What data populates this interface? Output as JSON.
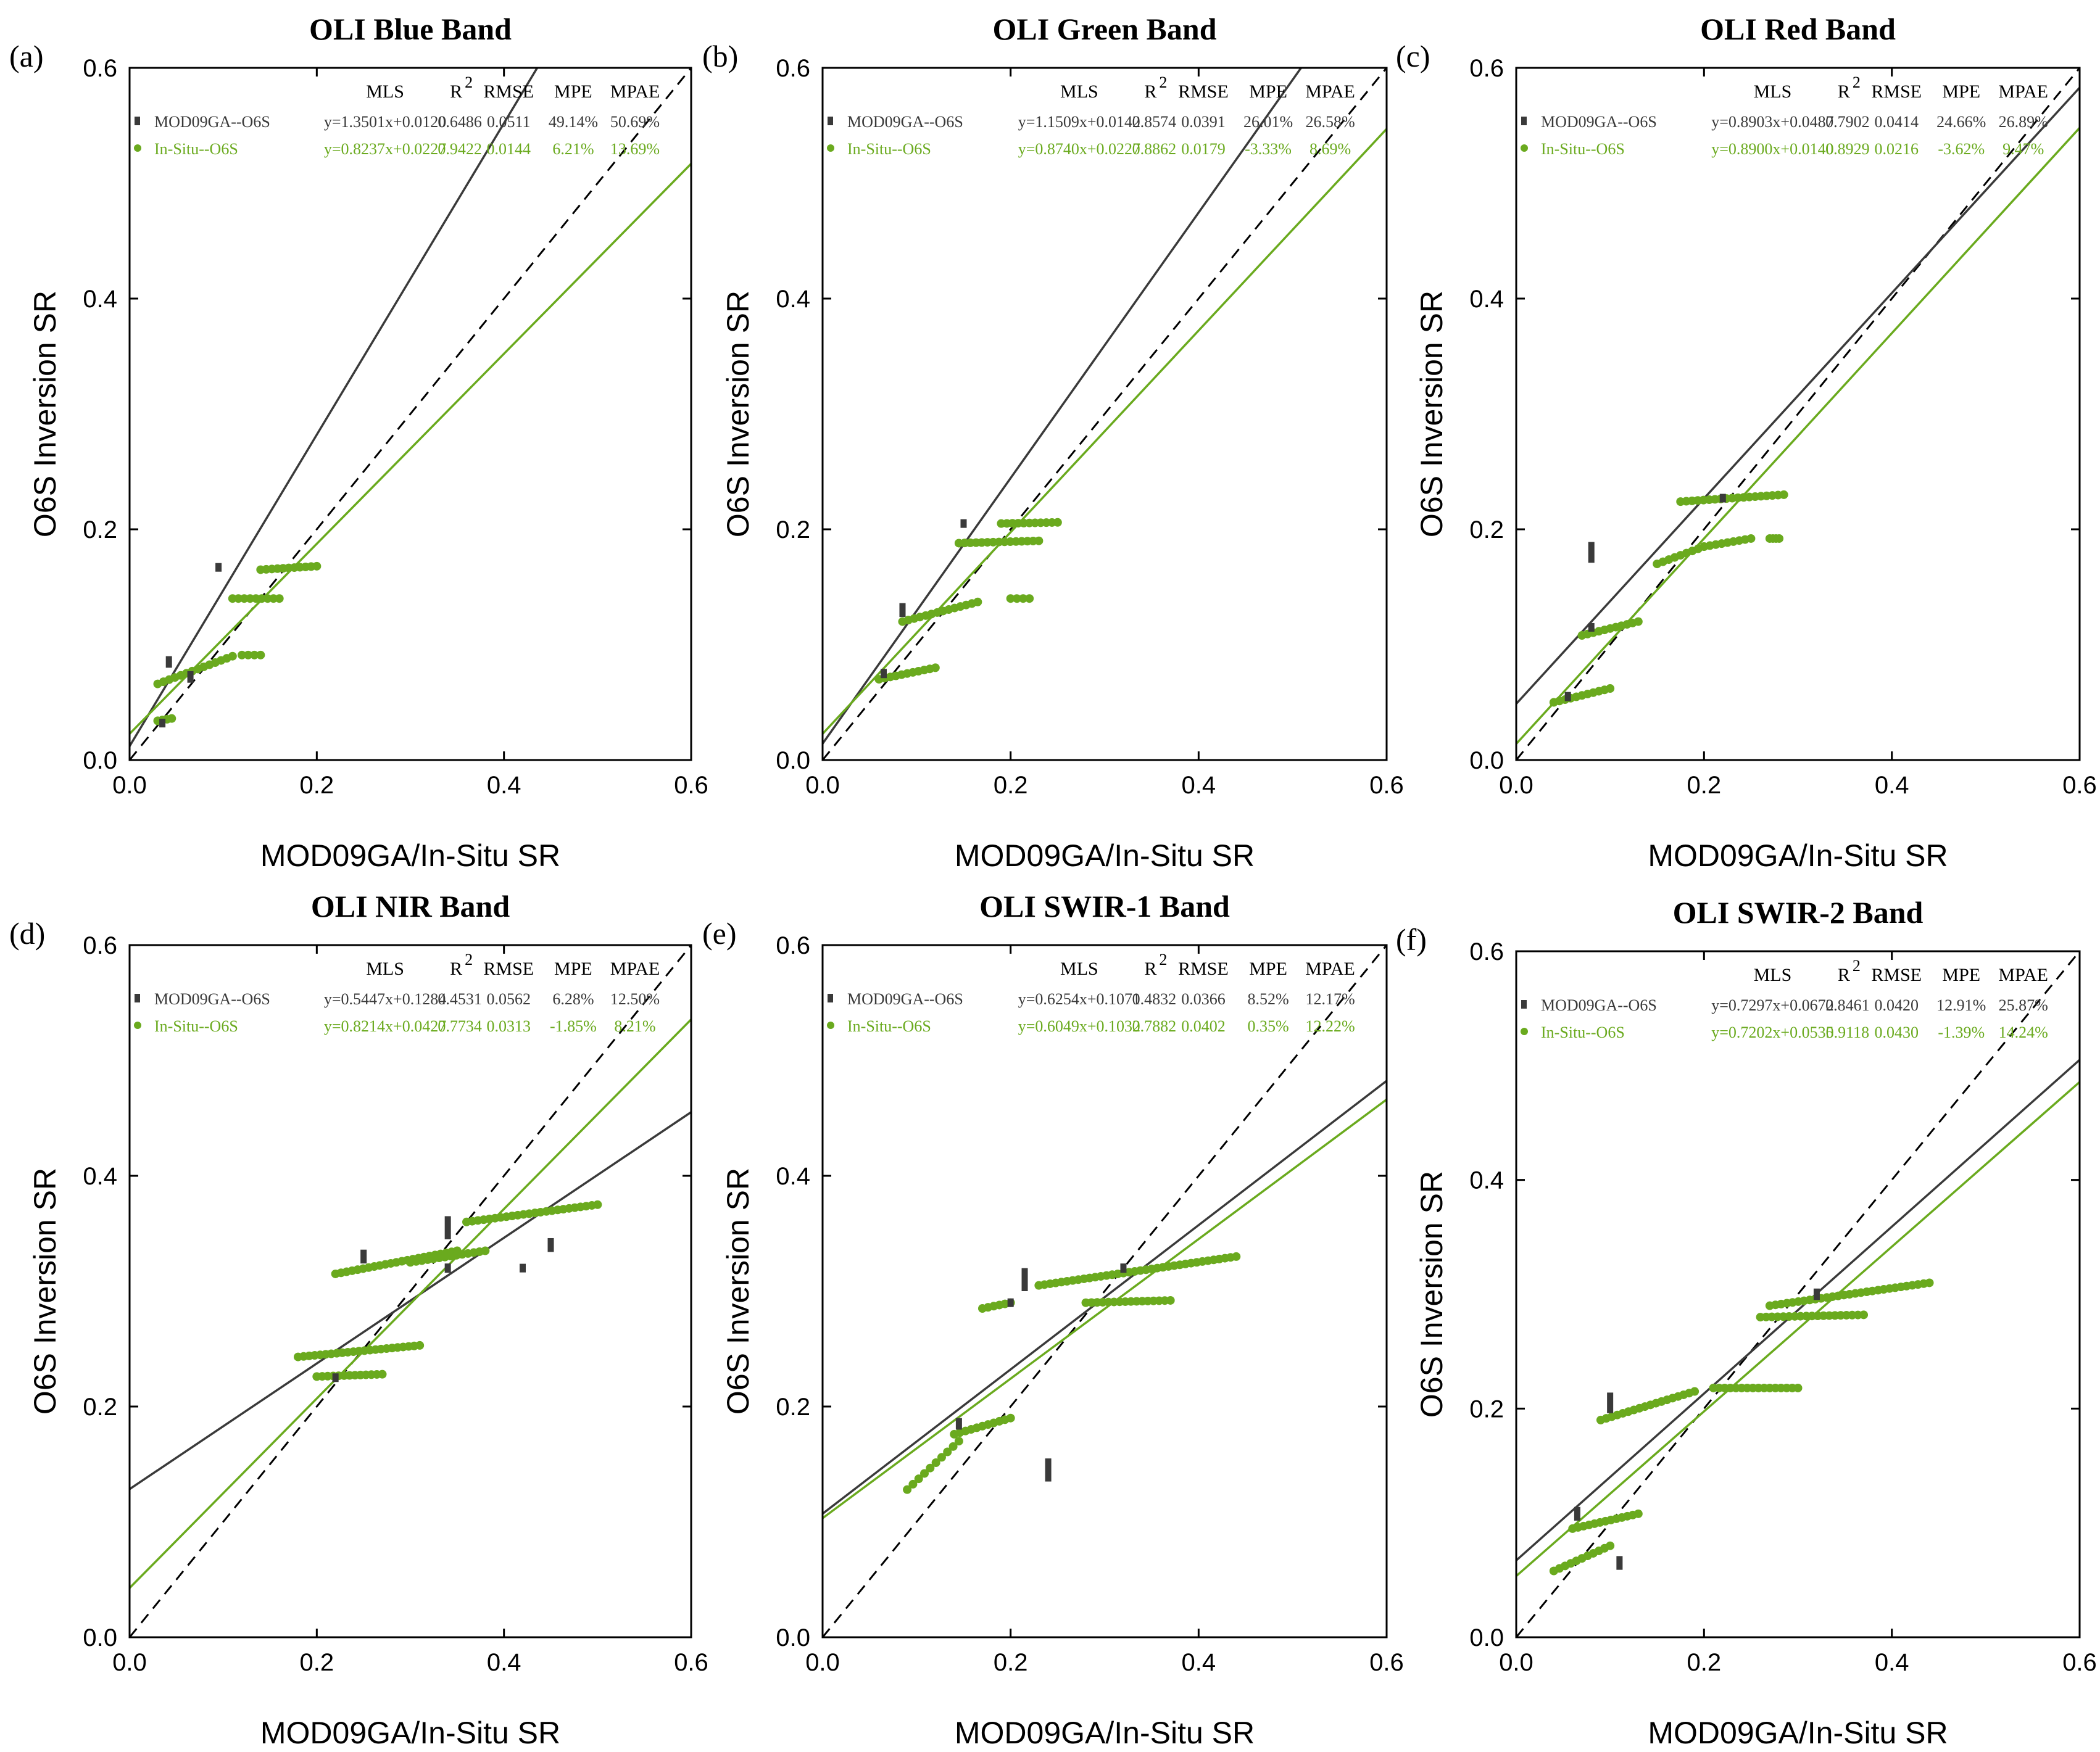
{
  "figure": {
    "colors": {
      "mod": "#3a3a3a",
      "situ": "#6aaa1e",
      "axis": "#000000"
    },
    "legend_header": {
      "mls": "MLS",
      "r2": "R",
      "r2_sup": "2",
      "rmse": "RMSE",
      "mpe": "MPE",
      "mpae": "MPAE"
    }
  },
  "chart_data": [
    {
      "type": "scatter",
      "panel_label": "(a)",
      "title": "OLI Blue Band",
      "xlabel": "MOD09GA/In-Situ SR",
      "ylabel": "O6S Inversion SR",
      "xlim": [
        0,
        0.6
      ],
      "ylim": [
        0,
        0.6
      ],
      "xticks": [
        "0.0",
        "0.2",
        "0.4",
        "0.6"
      ],
      "yticks": [
        "0.0",
        "0.2",
        "0.4",
        "0.6"
      ],
      "reference_line": "1:1 dashed",
      "series": [
        {
          "name": "MOD09GA--O6S",
          "equation": "y=1.3501x+0.0120",
          "slope": 1.3501,
          "intercept": 0.012,
          "r2": "0.6486",
          "rmse": "0.0511",
          "mpe": "49.14%",
          "mpae": "50.69%",
          "clusters": [
            [
              0.042,
              0.085,
              0.01
            ],
            [
              0.065,
              0.072,
              0.01
            ],
            [
              0.035,
              0.032,
              0.005
            ],
            [
              0.095,
              0.167,
              0.004
            ]
          ]
        },
        {
          "name": "In-Situ--O6S",
          "equation": "y=0.8237x+0.0227",
          "slope": 0.8237,
          "intercept": 0.0227,
          "r2": "0.9422",
          "rmse": "0.0144",
          "mpe": "6.21%",
          "mpae": "13.69%",
          "segments": [
            [
              0.03,
              0.11,
              0.066,
              0.09
            ],
            [
              0.14,
              0.2,
              0.165,
              0.168
            ],
            [
              0.11,
              0.16,
              0.14,
              0.14
            ],
            [
              0.03,
              0.045,
              0.034,
              0.036
            ],
            [
              0.12,
              0.14,
              0.091,
              0.091
            ]
          ]
        }
      ]
    },
    {
      "type": "scatter",
      "panel_label": "(b)",
      "title": "OLI Green Band",
      "xlabel": "MOD09GA/In-Situ SR",
      "ylabel": "O6S Inversion SR",
      "xlim": [
        0,
        0.6
      ],
      "ylim": [
        0,
        0.6
      ],
      "xticks": [
        "0.0",
        "0.2",
        "0.4",
        "0.6"
      ],
      "yticks": [
        "0.0",
        "0.2",
        "0.4",
        "0.6"
      ],
      "reference_line": "1:1 dashed",
      "series": [
        {
          "name": "MOD09GA--O6S",
          "equation": "y=1.1509x+0.0142",
          "slope": 1.1509,
          "intercept": 0.0142,
          "r2": "0.8574",
          "rmse": "0.0391",
          "mpe": "26.01%",
          "mpae": "26.58%",
          "clusters": [
            [
              0.085,
              0.13,
              0.012
            ],
            [
              0.065,
              0.075,
              0.008
            ],
            [
              0.15,
              0.205,
              0.004
            ]
          ]
        },
        {
          "name": "In-Situ--O6S",
          "equation": "y=0.8740x+0.0227",
          "slope": 0.874,
          "intercept": 0.0227,
          "r2": "0.8862",
          "rmse": "0.0179",
          "mpe": "-3.33%",
          "mpae": "8.69%",
          "segments": [
            [
              0.085,
              0.165,
              0.12,
              0.137
            ],
            [
              0.145,
              0.23,
              0.188,
              0.19
            ],
            [
              0.19,
              0.25,
              0.205,
              0.206
            ],
            [
              0.06,
              0.12,
              0.07,
              0.08
            ],
            [
              0.2,
              0.22,
              0.14,
              0.14
            ]
          ]
        }
      ]
    },
    {
      "type": "scatter",
      "panel_label": "(c)",
      "title": "OLI Red Band",
      "xlabel": "MOD09GA/In-Situ SR",
      "ylabel": "O6S Inversion SR",
      "xlim": [
        0,
        0.6
      ],
      "ylim": [
        0,
        0.6
      ],
      "xticks": [
        "0.0",
        "0.2",
        "0.4",
        "0.6"
      ],
      "yticks": [
        "0.0",
        "0.2",
        "0.4",
        "0.6"
      ],
      "reference_line": "1:1 dashed",
      "series": [
        {
          "name": "MOD09GA--O6S",
          "equation": "y=0.8903x+0.0487",
          "slope": 0.8903,
          "intercept": 0.0487,
          "r2": "0.7902",
          "rmse": "0.0414",
          "mpe": "24.66%",
          "mpae": "26.89%",
          "clusters": [
            [
              0.08,
              0.18,
              0.018
            ],
            [
              0.08,
              0.115,
              0.006
            ],
            [
              0.055,
              0.055,
              0.008
            ],
            [
              0.22,
              0.227,
              0.004
            ]
          ]
        },
        {
          "name": "In-Situ--O6S",
          "equation": "y=0.8900x+0.0140",
          "slope": 0.89,
          "intercept": 0.014,
          "r2": "0.8929",
          "rmse": "0.0216",
          "mpe": "-3.62%",
          "mpae": "9.47%",
          "segments": [
            [
              0.07,
              0.13,
              0.108,
              0.12
            ],
            [
              0.175,
              0.285,
              0.224,
              0.23
            ],
            [
              0.15,
              0.2,
              0.17,
              0.185
            ],
            [
              0.2,
              0.25,
              0.185,
              0.192
            ],
            [
              0.04,
              0.1,
              0.05,
              0.062
            ],
            [
              0.27,
              0.28,
              0.192,
              0.192
            ]
          ]
        }
      ]
    },
    {
      "type": "scatter",
      "panel_label": "(d)",
      "title": "OLI NIR Band",
      "xlabel": "MOD09GA/In-Situ SR",
      "ylabel": "O6S Inversion SR",
      "xlim": [
        0,
        0.6
      ],
      "ylim": [
        0,
        0.6
      ],
      "xticks": [
        "0.0",
        "0.2",
        "0.4",
        "0.6"
      ],
      "yticks": [
        "0.0",
        "0.2",
        "0.4",
        "0.6"
      ],
      "reference_line": "1:1 dashed",
      "series": [
        {
          "name": "MOD09GA--O6S",
          "equation": "y=0.5447x+0.1284",
          "slope": 0.5447,
          "intercept": 0.1284,
          "r2": "0.4531",
          "rmse": "0.0562",
          "mpe": "6.28%",
          "mpae": "12.50%",
          "clusters": [
            [
              0.25,
              0.33,
              0.012
            ],
            [
              0.34,
              0.355,
              0.02
            ],
            [
              0.34,
              0.32,
              0.008
            ],
            [
              0.42,
              0.32,
              0.006
            ],
            [
              0.45,
              0.34,
              0.012
            ],
            [
              0.22,
              0.225,
              0.004
            ]
          ]
        },
        {
          "name": "In-Situ--O6S",
          "equation": "y=0.8214x+0.0427",
          "slope": 0.8214,
          "intercept": 0.0427,
          "r2": "0.7734",
          "rmse": "0.0313",
          "mpe": "-1.85%",
          "mpae": "8.21%",
          "segments": [
            [
              0.22,
              0.35,
              0.315,
              0.335
            ],
            [
              0.36,
              0.5,
              0.36,
              0.375
            ],
            [
              0.3,
              0.38,
              0.325,
              0.335
            ],
            [
              0.18,
              0.31,
              0.243,
              0.253
            ],
            [
              0.2,
              0.27,
              0.226,
              0.228
            ]
          ]
        }
      ]
    },
    {
      "type": "scatter",
      "panel_label": "(e)",
      "title": "OLI SWIR-1 Band",
      "xlabel": "MOD09GA/In-Situ SR",
      "ylabel": "O6S Inversion SR",
      "xlim": [
        0,
        0.6
      ],
      "ylim": [
        0,
        0.6
      ],
      "xticks": [
        "0.0",
        "0.2",
        "0.4",
        "0.6"
      ],
      "yticks": [
        "0.0",
        "0.2",
        "0.4",
        "0.6"
      ],
      "reference_line": "1:1 dashed",
      "series": [
        {
          "name": "MOD09GA--O6S",
          "equation": "y=0.6254x+0.1071",
          "slope": 0.6254,
          "intercept": 0.1071,
          "r2": "0.4832",
          "rmse": "0.0366",
          "mpe": "8.52%",
          "mpae": "12.17%",
          "clusters": [
            [
              0.215,
              0.31,
              0.02
            ],
            [
              0.2,
              0.29,
              0.006
            ],
            [
              0.145,
              0.185,
              0.01
            ],
            [
              0.24,
              0.145,
              0.02
            ],
            [
              0.32,
              0.32,
              0.008
            ]
          ]
        },
        {
          "name": "In-Situ--O6S",
          "equation": "y=0.6049x+0.1032",
          "slope": 0.6049,
          "intercept": 0.1032,
          "r2": "0.7882",
          "rmse": "0.0402",
          "mpe": "0.35%",
          "mpae": "12.22%",
          "segments": [
            [
              0.09,
              0.145,
              0.128,
              0.17
            ],
            [
              0.14,
              0.2,
              0.176,
              0.19
            ],
            [
              0.17,
              0.2,
              0.285,
              0.29
            ],
            [
              0.23,
              0.44,
              0.305,
              0.33
            ],
            [
              0.28,
              0.37,
              0.29,
              0.292
            ]
          ]
        }
      ]
    },
    {
      "type": "scatter",
      "panel_label": "(f)",
      "title": "OLI SWIR-2 Band",
      "xlabel": "MOD09GA/In-Situ SR",
      "ylabel": "O6S Inversion SR",
      "xlim": [
        0,
        0.6
      ],
      "ylim": [
        0,
        0.6
      ],
      "xticks": [
        "0.0",
        "0.2",
        "0.4",
        "0.6"
      ],
      "yticks": [
        "0.0",
        "0.2",
        "0.4",
        "0.6"
      ],
      "reference_line": "1:1 dashed",
      "series": [
        {
          "name": "MOD09GA--O6S",
          "equation": "y=0.7297x+0.0672",
          "slope": 0.7297,
          "intercept": 0.0672,
          "r2": "0.8461",
          "rmse": "0.0420",
          "mpe": "12.91%",
          "mpae": "25.87%",
          "clusters": [
            [
              0.1,
              0.205,
              0.018
            ],
            [
              0.065,
              0.108,
              0.012
            ],
            [
              0.11,
              0.065,
              0.012
            ],
            [
              0.32,
              0.3,
              0.01
            ]
          ]
        },
        {
          "name": "In-Situ--O6S",
          "equation": "y=0.7202x+0.0535",
          "slope": 0.7202,
          "intercept": 0.0535,
          "r2": "0.9118",
          "rmse": "0.0430",
          "mpe": "-1.39%",
          "mpae": "14.24%",
          "segments": [
            [
              0.04,
              0.1,
              0.058,
              0.08
            ],
            [
              0.06,
              0.13,
              0.095,
              0.108
            ],
            [
              0.09,
              0.19,
              0.19,
              0.215
            ],
            [
              0.27,
              0.44,
              0.29,
              0.31
            ],
            [
              0.26,
              0.37,
              0.28,
              0.282
            ],
            [
              0.21,
              0.3,
              0.218,
              0.218
            ]
          ]
        }
      ]
    }
  ]
}
